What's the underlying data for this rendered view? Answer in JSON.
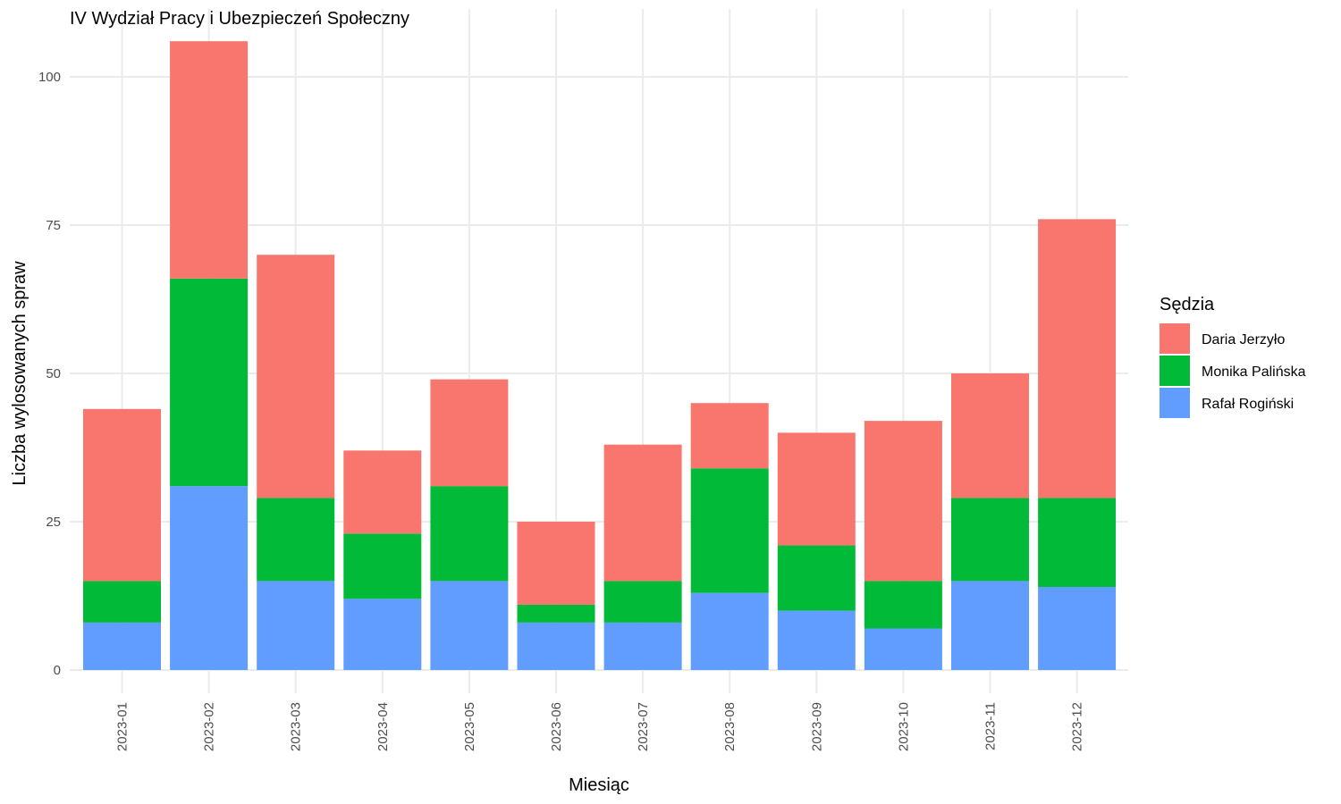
{
  "chart_data": {
    "type": "bar",
    "stacked": true,
    "title": "IV Wydział Pracy i Ubezpieczeń Społeczny",
    "xlabel": "Miesiąc",
    "ylabel": "Liczba wylosowanych spraw",
    "ylim": [
      0,
      110
    ],
    "yticks": [
      0,
      25,
      50,
      75,
      100
    ],
    "grid": true,
    "legend": {
      "title": "Sędzia",
      "placement": "right"
    },
    "categories": [
      "2023-01",
      "2023-02",
      "2023-03",
      "2023-04",
      "2023-05",
      "2023-06",
      "2023-07",
      "2023-08",
      "2023-09",
      "2023-10",
      "2023-11",
      "2023-12"
    ],
    "series": [
      {
        "name": "Rafał Rogiński",
        "color": "#619CFF",
        "values": [
          8,
          31,
          15,
          12,
          15,
          8,
          8,
          13,
          10,
          7,
          15,
          14
        ]
      },
      {
        "name": "Monika Palińska",
        "color": "#00BA38",
        "values": [
          7,
          35,
          14,
          11,
          16,
          3,
          7,
          21,
          11,
          8,
          14,
          15
        ]
      },
      {
        "name": "Daria Jerzyło",
        "color": "#F8766D",
        "values": [
          29,
          40,
          41,
          14,
          18,
          14,
          23,
          11,
          19,
          27,
          21,
          47
        ]
      }
    ],
    "legend_order": [
      "Daria Jerzyło",
      "Monika Palińska",
      "Rafał Rogiński"
    ]
  }
}
